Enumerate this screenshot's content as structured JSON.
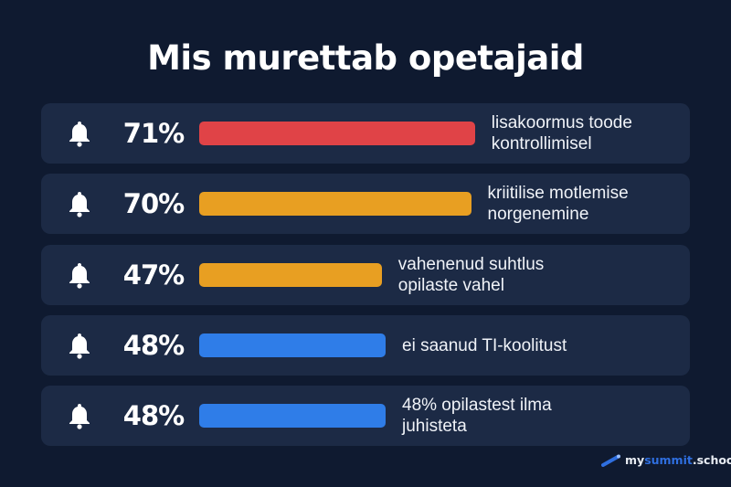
{
  "chart_data": {
    "type": "bar",
    "orientation": "horizontal",
    "title": "Mis murettab opetajaid",
    "categories": [
      "lisakoormus toode kontrollimisel",
      "kriitilise motlemise norgenemine",
      "vahenenud suhtlus opilaste vahel",
      "ei saanud TI-koolitust",
      "48% opilastest ilma juhisteta"
    ],
    "values": [
      71,
      70,
      47,
      48,
      48
    ],
    "value_labels": [
      "71%",
      "70%",
      "47%",
      "48%",
      "48%"
    ],
    "colors": [
      "#e04347",
      "#e89f22",
      "#e89f22",
      "#2f7de8",
      "#2f7de8"
    ],
    "icon": "bell-icon",
    "grid": false
  },
  "logo": {
    "part1": "my",
    "part2": "summit",
    "part3": ".school"
  }
}
